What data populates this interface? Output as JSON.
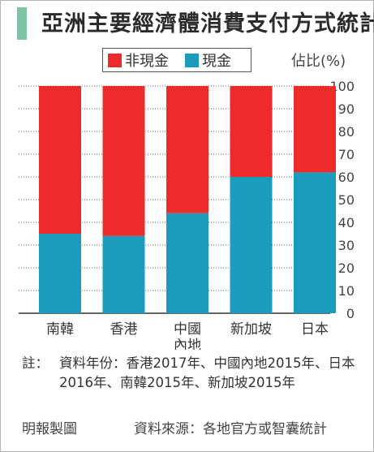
{
  "title": "亞洲主要經濟體消費支付方式統計",
  "colors": {
    "title_bar": "#7dc4a3",
    "non_cash": "#ee2b2b",
    "cash": "#1a9cbc",
    "grid": "#666666",
    "axis": "#333333"
  },
  "legend": {
    "non_cash_label": "非現金",
    "cash_label": "現金"
  },
  "unit": "佔比(%)",
  "chart_data": {
    "type": "bar",
    "stacked": true,
    "categories": [
      "南韓",
      "香港",
      "中國\n內地",
      "新加坡",
      "日本"
    ],
    "series": [
      {
        "name": "現金",
        "color": "#1a9cbc",
        "values": [
          35,
          34,
          44,
          60,
          62
        ]
      },
      {
        "name": "非現金",
        "color": "#ee2b2b",
        "values": [
          65,
          66,
          56,
          40,
          38
        ]
      }
    ],
    "y_ticks": [
      0,
      10,
      20,
      30,
      40,
      50,
      60,
      70,
      80,
      90,
      100
    ],
    "ylim": [
      0,
      100
    ],
    "y_axis_position": "right",
    "grid": "dotted horizontal",
    "legend_position": "top"
  },
  "note": {
    "lead": "註：",
    "text": "資料年份：香港2017年、中國內地2015年、日本2016年、南韓2015年、新加坡2015年"
  },
  "credit": "明報製圖",
  "source": "資料來源：各地官方或智囊統計"
}
